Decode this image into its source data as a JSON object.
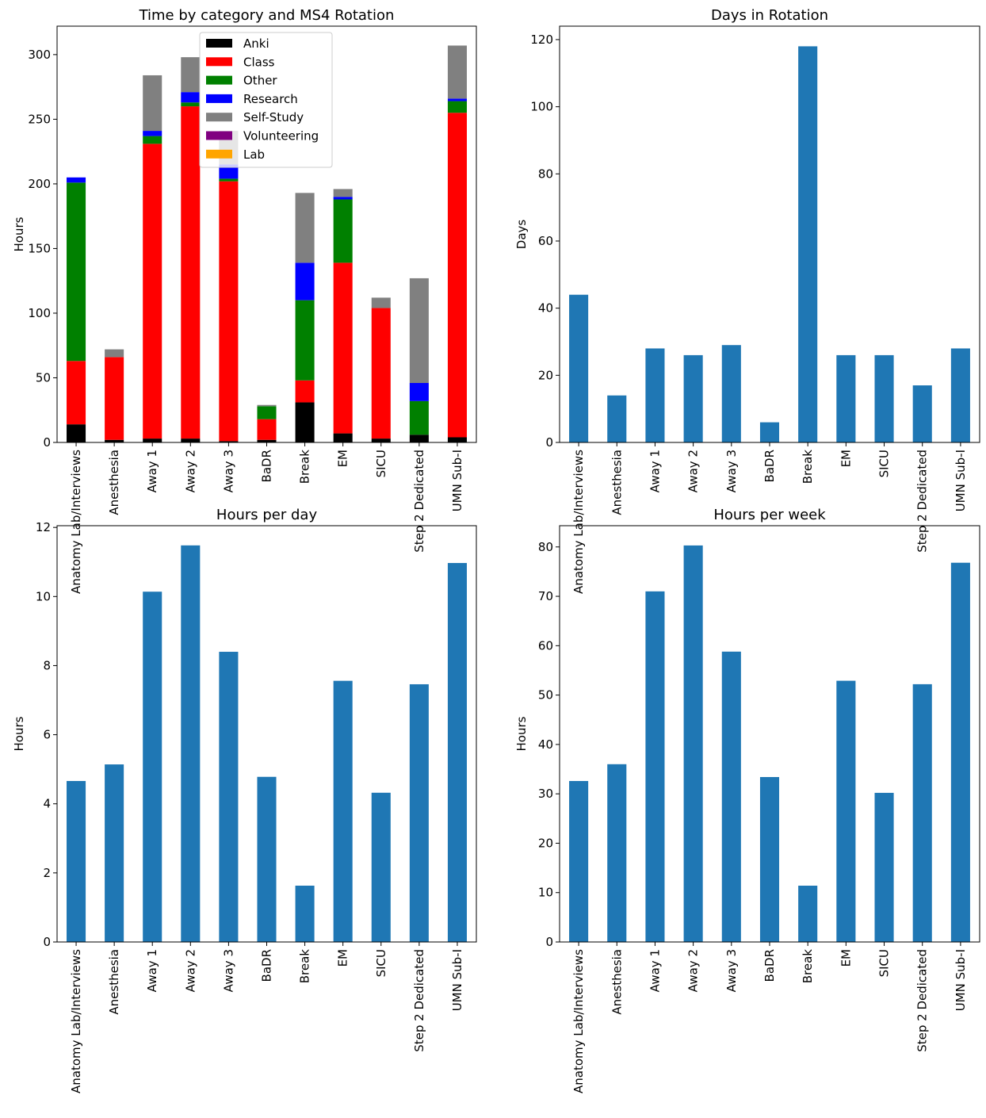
{
  "colors": {
    "Anki": "#000000",
    "Class": "#ff0000",
    "Other": "#008000",
    "Research": "#0000ff",
    "Self-Study": "#808080",
    "Volunteering": "#800080",
    "Lab": "#ffa500",
    "bar": "#1f77b4"
  },
  "chart_data": [
    {
      "type": "bar",
      "stacked": true,
      "title": "Time by category and MS4 Rotation",
      "xlabel": "",
      "ylabel": "Hours",
      "ylim": [
        0,
        322
      ],
      "yticks": [
        0,
        50,
        100,
        150,
        200,
        250,
        300
      ],
      "grid": false,
      "legend_position": "top-center",
      "categories": [
        "Anatomy Lab/Interviews",
        "Anesthesia",
        "Away 1",
        "Away 2",
        "Away 3",
        "BaDR",
        "Break",
        "EM",
        "SICU",
        "Step 2 Dedicated",
        "UMN Sub-I"
      ],
      "series": [
        {
          "name": "Anki",
          "values": [
            14,
            2,
            3,
            3,
            1,
            2,
            31,
            7,
            3,
            6,
            4
          ]
        },
        {
          "name": "Class",
          "values": [
            49,
            64,
            228,
            257,
            201,
            16,
            17,
            132,
            101,
            0,
            251
          ]
        },
        {
          "name": "Other",
          "values": [
            138,
            0,
            6,
            3,
            2,
            10,
            62,
            49,
            0,
            26,
            9
          ]
        },
        {
          "name": "Research",
          "values": [
            4,
            0,
            4,
            8,
            11,
            0,
            29,
            2,
            0,
            14,
            2
          ]
        },
        {
          "name": "Self-Study",
          "values": [
            0,
            6,
            43,
            27,
            26,
            1,
            54,
            6,
            8,
            81,
            41
          ]
        },
        {
          "name": "Volunteering",
          "values": [
            0,
            0,
            0,
            0,
            0,
            0,
            0,
            0,
            0,
            0,
            0
          ]
        },
        {
          "name": "Lab",
          "values": [
            0,
            0,
            0,
            0,
            0,
            0,
            0,
            0,
            0,
            0,
            0
          ]
        }
      ]
    },
    {
      "type": "bar",
      "title": "Days in Rotation",
      "xlabel": "",
      "ylabel": "Days",
      "ylim": [
        0,
        124
      ],
      "yticks": [
        0,
        20,
        40,
        60,
        80,
        100,
        120
      ],
      "grid": false,
      "categories": [
        "Anatomy Lab/Interviews",
        "Anesthesia",
        "Away 1",
        "Away 2",
        "Away 3",
        "BaDR",
        "Break",
        "EM",
        "SICU",
        "Step 2 Dedicated",
        "UMN Sub-I"
      ],
      "values": [
        44,
        14,
        28,
        26,
        29,
        6,
        118,
        26,
        26,
        17,
        28
      ]
    },
    {
      "type": "bar",
      "title": "Hours per day",
      "xlabel": "",
      "ylabel": "Hours",
      "ylim": [
        0,
        12.05
      ],
      "yticks": [
        0,
        2,
        4,
        6,
        8,
        10,
        12
      ],
      "grid": false,
      "categories": [
        "Anatomy Lab/Interviews",
        "Anesthesia",
        "Away 1",
        "Away 2",
        "Away 3",
        "BaDR",
        "Break",
        "EM",
        "SICU",
        "Step 2 Dedicated",
        "UMN Sub-I"
      ],
      "values": [
        4.66,
        5.14,
        10.14,
        11.48,
        8.4,
        4.78,
        1.63,
        7.56,
        4.32,
        7.46,
        10.97
      ]
    },
    {
      "type": "bar",
      "title": "Hours per week",
      "xlabel": "",
      "ylabel": "Hours",
      "ylim": [
        0,
        84.3
      ],
      "yticks": [
        0,
        10,
        20,
        30,
        40,
        50,
        60,
        70,
        80
      ],
      "grid": false,
      "categories": [
        "Anatomy Lab/Interviews",
        "Anesthesia",
        "Away 1",
        "Away 2",
        "Away 3",
        "BaDR",
        "Break",
        "EM",
        "SICU",
        "Step 2 Dedicated",
        "UMN Sub-I"
      ],
      "values": [
        32.6,
        36.0,
        71.0,
        80.3,
        58.8,
        33.4,
        11.4,
        52.9,
        30.2,
        52.2,
        76.8
      ]
    }
  ]
}
